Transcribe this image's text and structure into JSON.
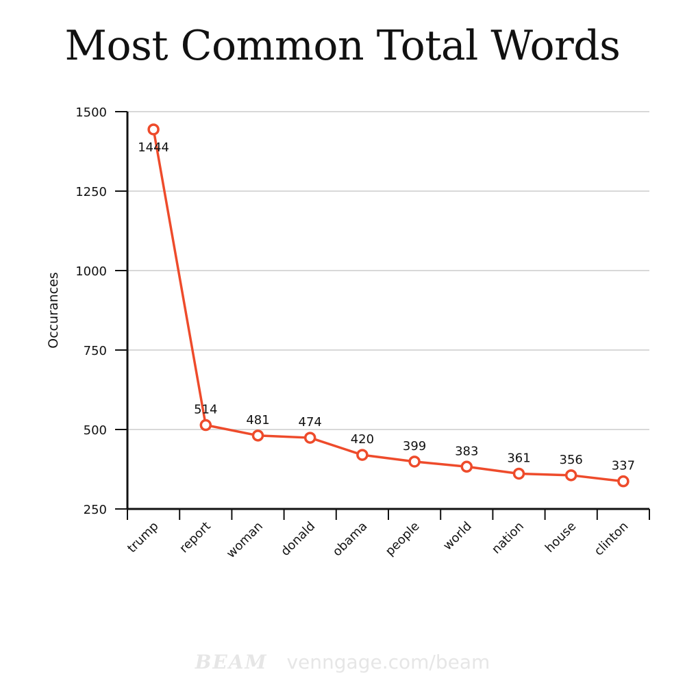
{
  "title": "Most Common Total Words",
  "watermark": {
    "brand": "BEAM",
    "url": "venngage.com/beam"
  },
  "colors": {
    "line": "#ee4b2b",
    "grid": "#cccccc",
    "axis": "#111111"
  },
  "chart_data": {
    "type": "line",
    "title": "Most Common Total Words",
    "xlabel": "",
    "ylabel": "Occurances",
    "categories": [
      "trump",
      "report",
      "woman",
      "donald",
      "obama",
      "people",
      "world",
      "nation",
      "house",
      "clinton"
    ],
    "values": [
      1444,
      514,
      481,
      474,
      420,
      399,
      383,
      361,
      356,
      337
    ],
    "ylim": [
      250,
      1500
    ],
    "yticks": [
      250,
      500,
      750,
      1000,
      1250,
      1500
    ],
    "grid": true,
    "legend": "none"
  }
}
